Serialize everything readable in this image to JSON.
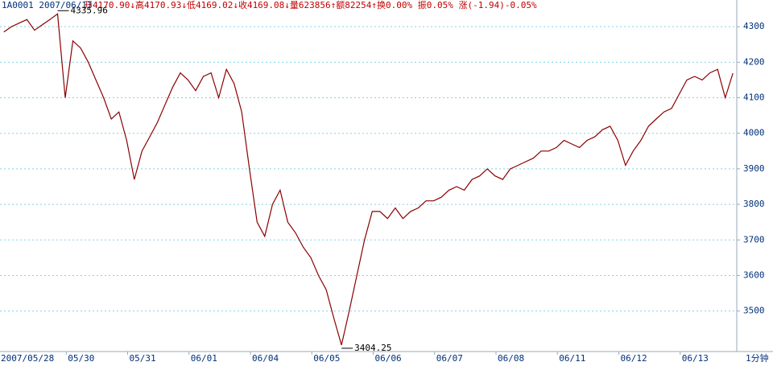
{
  "chart_data": {
    "type": "line",
    "title": "1A0001 2007/06/13",
    "subtitle": "开4170.90↓高4170.93↓低4169.02↓收4169.08↓量623856↑额82254↑换0.00% 振0.05% 涨(-1.94)-0.05%",
    "period_label": "1分钟",
    "annotations": [
      "4335.96",
      "3404.25"
    ],
    "categories": [
      "2007/05/28",
      null,
      null,
      null,
      null,
      null,
      null,
      null,
      "05/30",
      null,
      null,
      null,
      null,
      null,
      null,
      null,
      "05/31",
      null,
      null,
      null,
      null,
      null,
      null,
      null,
      "06/01",
      null,
      null,
      null,
      null,
      null,
      null,
      null,
      "06/04",
      null,
      null,
      null,
      null,
      null,
      null,
      null,
      "06/05",
      null,
      null,
      null,
      null,
      null,
      null,
      null,
      "06/06",
      null,
      null,
      null,
      null,
      null,
      null,
      null,
      "06/07",
      null,
      null,
      null,
      null,
      null,
      null,
      null,
      "06/08",
      null,
      null,
      null,
      null,
      null,
      null,
      null,
      "06/11",
      null,
      null,
      null,
      null,
      null,
      null,
      null,
      "06/12",
      null,
      null,
      null,
      null,
      null,
      null,
      null,
      "06/13",
      null,
      null,
      null,
      null,
      null,
      null,
      null
    ],
    "series": [
      {
        "color": "#8b0000",
        "values": [
          4285,
          4300,
          4310,
          4320,
          4290,
          4305,
          4320,
          4335.96,
          4100,
          4260,
          4240,
          4200,
          4150,
          4100,
          4040,
          4060,
          3980,
          3870,
          3950,
          3990,
          4030,
          4080,
          4130,
          4170,
          4150,
          4120,
          4160,
          4170,
          4100,
          4180,
          4140,
          4060,
          3900,
          3750,
          3710,
          3800,
          3840,
          3750,
          3720,
          3680,
          3650,
          3600,
          3560,
          3480,
          3404.25,
          3500,
          3600,
          3700,
          3780,
          3780,
          3760,
          3790,
          3760,
          3780,
          3790,
          3810,
          3810,
          3820,
          3840,
          3850,
          3840,
          3870,
          3880,
          3900,
          3880,
          3870,
          3900,
          3910,
          3920,
          3930,
          3950,
          3950,
          3960,
          3980,
          3970,
          3960,
          3980,
          3990,
          4010,
          4020,
          3980,
          3910,
          3950,
          3980,
          4020,
          4040,
          4060,
          4070,
          4110,
          4150,
          4160,
          4150,
          4170,
          4180,
          4100,
          4169.08
        ]
      }
    ],
    "ylim": [
      3386,
      4375
    ],
    "yticks": [
      3500,
      3600,
      3700,
      3800,
      3900,
      4000,
      4100,
      4200,
      4300
    ],
    "grid": true
  }
}
